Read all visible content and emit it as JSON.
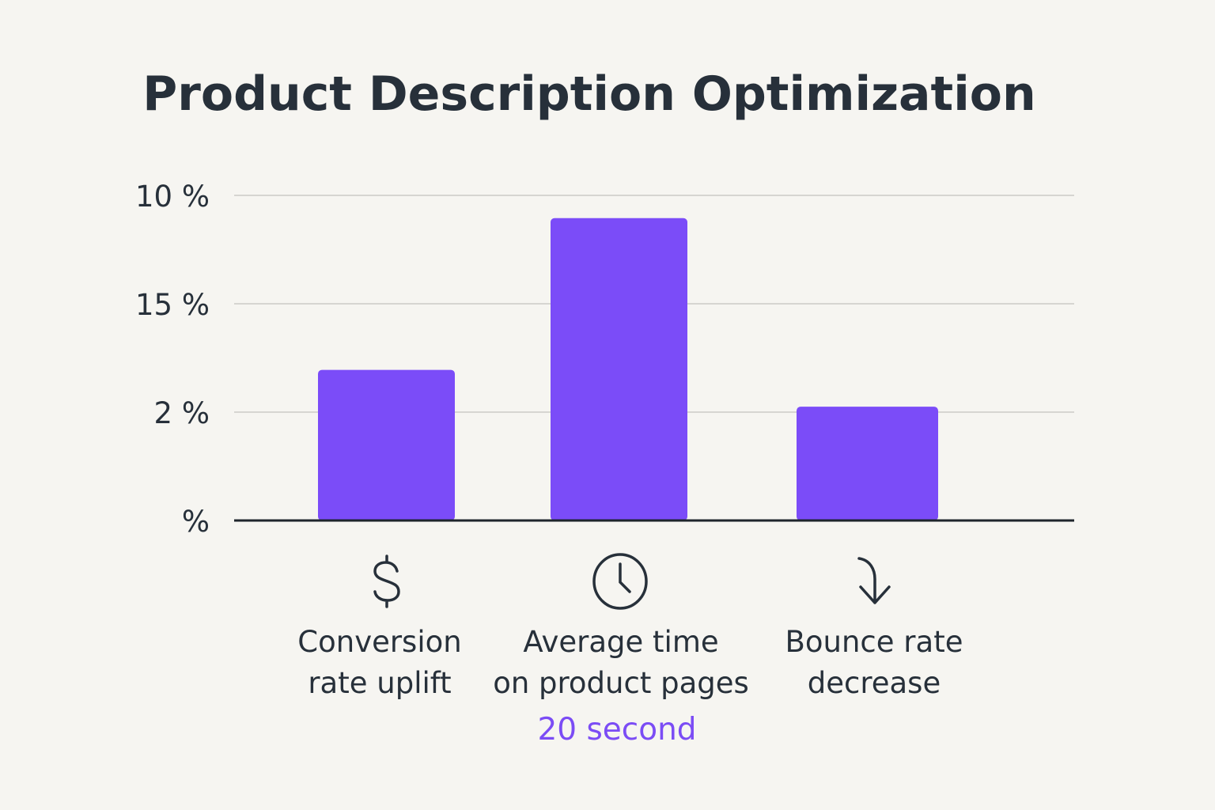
{
  "chart_data": {
    "type": "bar",
    "title": "Product Description Optimization",
    "categories": [
      "Conversion rate uplift",
      "Average time on product pages",
      "Bounce rate decrease"
    ],
    "category_lines": [
      [
        "Conversion",
        "rate uplift"
      ],
      [
        "Average time",
        "on product pages"
      ],
      [
        "Bounce rate",
        "decrease"
      ]
    ],
    "category_icons": [
      "dollar-icon",
      "clock-icon",
      "arrow-down-icon"
    ],
    "values": [
      1.39,
      2.79,
      1.05
    ],
    "value_scale_note_visible": false,
    "ytick_labels": [
      "%",
      "2 %",
      "15 %",
      "10 %"
    ],
    "ylim": [
      0,
      3
    ],
    "grid": true,
    "annotation": "20 second",
    "colors": {
      "bar": "#7b4cf8",
      "annotation": "#7b4cf5",
      "text": "#27303a",
      "grid": "#d6d5d1"
    }
  }
}
